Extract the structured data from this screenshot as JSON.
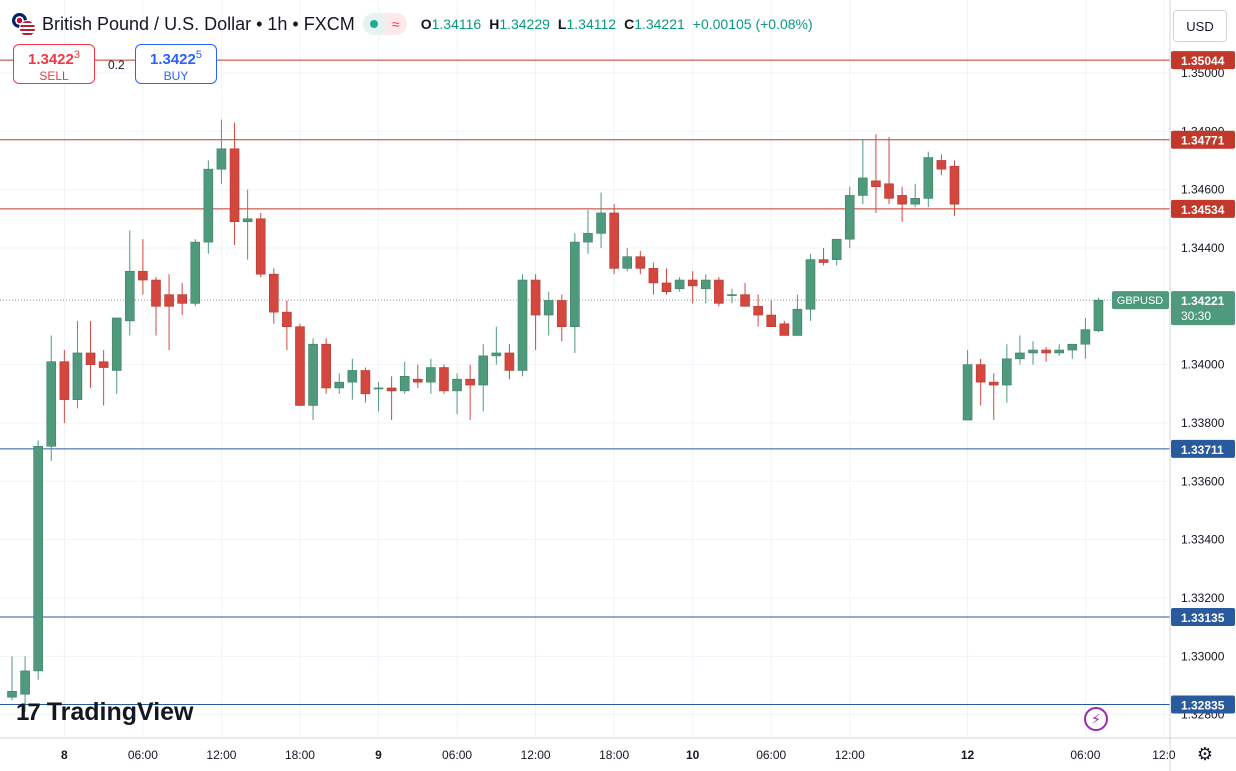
{
  "header": {
    "title": "British Pound / U.S. Dollar • 1h • FXCM",
    "ohlc": {
      "o_label": "O",
      "o": "1.34116",
      "h_label": "H",
      "h": "1.34229",
      "l_label": "L",
      "l": "1.34112",
      "c_label": "C",
      "c": "1.34221",
      "change": "+0.00105 (+0.08%)"
    }
  },
  "trade": {
    "sell_price": "1.3422",
    "sell_price_sup": "3",
    "sell_label": "SELL",
    "buy_price": "1.3422",
    "buy_price_sup": "5",
    "buy_label": "BUY",
    "spread": "0.2"
  },
  "currency_label": "USD",
  "brand": "TradingView",
  "colors": {
    "up": "#4f9a7c",
    "down": "#d3473f",
    "resistance": "#c0392b",
    "support": "#2a5a9e",
    "grid": "#f0f3fa"
  },
  "chart_data": {
    "type": "candlestick",
    "symbol": "GBPUSD",
    "timeframe": "1h",
    "current_price": "1.34221",
    "countdown": "30:30",
    "ylim": [
      1.3272,
      1.3525
    ],
    "y_ticks": [
      "1.35000",
      "1.34800",
      "1.34600",
      "1.34400",
      "1.34000",
      "1.33800",
      "1.33600",
      "1.33400",
      "1.33200",
      "1.33000",
      "1.32800"
    ],
    "x_ticks": [
      {
        "label": "8",
        "index": 4
      },
      {
        "label": "06:00",
        "index": 10
      },
      {
        "label": "12:00",
        "index": 16
      },
      {
        "label": "18:00",
        "index": 22
      },
      {
        "label": "9",
        "index": 28
      },
      {
        "label": "06:00",
        "index": 34
      },
      {
        "label": "12:00",
        "index": 40
      },
      {
        "label": "18:00",
        "index": 46
      },
      {
        "label": "10",
        "index": 52
      },
      {
        "label": "06:00",
        "index": 58
      },
      {
        "label": "12:00",
        "index": 64
      },
      {
        "label": "12",
        "index": 73
      },
      {
        "label": "06:00",
        "index": 82
      },
      {
        "label": "12:0",
        "index": 88
      }
    ],
    "levels": [
      {
        "price": 1.35044,
        "label": "1.35044",
        "kind": "resistance"
      },
      {
        "price": 1.34771,
        "label": "1.34771",
        "kind": "resistance"
      },
      {
        "price": 1.34534,
        "label": "1.34534",
        "kind": "resistance"
      },
      {
        "price": 1.33711,
        "label": "1.33711",
        "kind": "support"
      },
      {
        "price": 1.33135,
        "label": "1.33135",
        "kind": "support"
      },
      {
        "price": 1.32835,
        "label": "1.32835",
        "kind": "support"
      }
    ],
    "candles": [
      {
        "i": 0,
        "o": 1.3286,
        "h": 1.33,
        "l": 1.3285,
        "c": 1.3288
      },
      {
        "i": 1,
        "o": 1.3287,
        "h": 1.33,
        "l": 1.3281,
        "c": 1.3295
      },
      {
        "i": 2,
        "o": 1.3295,
        "h": 1.3374,
        "l": 1.3292,
        "c": 1.3372
      },
      {
        "i": 3,
        "o": 1.3372,
        "h": 1.341,
        "l": 1.3367,
        "c": 1.3401
      },
      {
        "i": 4,
        "o": 1.3401,
        "h": 1.3405,
        "l": 1.338,
        "c": 1.3388
      },
      {
        "i": 5,
        "o": 1.3388,
        "h": 1.3415,
        "l": 1.3385,
        "c": 1.3404
      },
      {
        "i": 6,
        "o": 1.3404,
        "h": 1.3415,
        "l": 1.3392,
        "c": 1.34
      },
      {
        "i": 7,
        "o": 1.3401,
        "h": 1.3405,
        "l": 1.3386,
        "c": 1.3399
      },
      {
        "i": 8,
        "o": 1.3398,
        "h": 1.3415,
        "l": 1.339,
        "c": 1.3416
      },
      {
        "i": 9,
        "o": 1.3415,
        "h": 1.3446,
        "l": 1.341,
        "c": 1.3432
      },
      {
        "i": 10,
        "o": 1.3432,
        "h": 1.3443,
        "l": 1.3424,
        "c": 1.3429
      },
      {
        "i": 11,
        "o": 1.3429,
        "h": 1.343,
        "l": 1.341,
        "c": 1.342
      },
      {
        "i": 12,
        "o": 1.3424,
        "h": 1.3431,
        "l": 1.3405,
        "c": 1.342
      },
      {
        "i": 13,
        "o": 1.3424,
        "h": 1.3428,
        "l": 1.3417,
        "c": 1.3421
      },
      {
        "i": 14,
        "o": 1.3421,
        "h": 1.3443,
        "l": 1.342,
        "c": 1.3442
      },
      {
        "i": 15,
        "o": 1.3442,
        "h": 1.347,
        "l": 1.3438,
        "c": 1.3467
      },
      {
        "i": 16,
        "o": 1.3467,
        "h": 1.3484,
        "l": 1.3462,
        "c": 1.3474
      },
      {
        "i": 17,
        "o": 1.3474,
        "h": 1.3483,
        "l": 1.3441,
        "c": 1.3449
      },
      {
        "i": 18,
        "o": 1.3449,
        "h": 1.346,
        "l": 1.3436,
        "c": 1.345
      },
      {
        "i": 19,
        "o": 1.345,
        "h": 1.3452,
        "l": 1.343,
        "c": 1.3431
      },
      {
        "i": 20,
        "o": 1.3431,
        "h": 1.3433,
        "l": 1.3414,
        "c": 1.3418
      },
      {
        "i": 21,
        "o": 1.3418,
        "h": 1.3422,
        "l": 1.3405,
        "c": 1.3413
      },
      {
        "i": 22,
        "o": 1.3413,
        "h": 1.3414,
        "l": 1.3386,
        "c": 1.3386
      },
      {
        "i": 23,
        "o": 1.3386,
        "h": 1.3409,
        "l": 1.3381,
        "c": 1.3407
      },
      {
        "i": 24,
        "o": 1.3407,
        "h": 1.3409,
        "l": 1.339,
        "c": 1.3392
      },
      {
        "i": 25,
        "o": 1.3392,
        "h": 1.3397,
        "l": 1.339,
        "c": 1.3394
      },
      {
        "i": 26,
        "o": 1.3394,
        "h": 1.3402,
        "l": 1.3388,
        "c": 1.3398
      },
      {
        "i": 27,
        "o": 1.3398,
        "h": 1.3399,
        "l": 1.3387,
        "c": 1.339
      },
      {
        "i": 28,
        "o": 1.3392,
        "h": 1.3394,
        "l": 1.3384,
        "c": 1.3392
      },
      {
        "i": 29,
        "o": 1.3392,
        "h": 1.3396,
        "l": 1.3381,
        "c": 1.3391
      },
      {
        "i": 30,
        "o": 1.3391,
        "h": 1.3401,
        "l": 1.339,
        "c": 1.3396
      },
      {
        "i": 31,
        "o": 1.3395,
        "h": 1.34,
        "l": 1.3392,
        "c": 1.3394
      },
      {
        "i": 32,
        "o": 1.3394,
        "h": 1.3402,
        "l": 1.339,
        "c": 1.3399
      },
      {
        "i": 33,
        "o": 1.3399,
        "h": 1.34,
        "l": 1.339,
        "c": 1.3391
      },
      {
        "i": 34,
        "o": 1.3391,
        "h": 1.3397,
        "l": 1.3383,
        "c": 1.3395
      },
      {
        "i": 35,
        "o": 1.3395,
        "h": 1.34,
        "l": 1.3381,
        "c": 1.3393
      },
      {
        "i": 36,
        "o": 1.3393,
        "h": 1.3407,
        "l": 1.3384,
        "c": 1.3403
      },
      {
        "i": 37,
        "o": 1.3403,
        "h": 1.3413,
        "l": 1.34,
        "c": 1.3404
      },
      {
        "i": 38,
        "o": 1.3404,
        "h": 1.3407,
        "l": 1.3395,
        "c": 1.3398
      },
      {
        "i": 39,
        "o": 1.3398,
        "h": 1.3431,
        "l": 1.3396,
        "c": 1.3429
      },
      {
        "i": 40,
        "o": 1.3429,
        "h": 1.3431,
        "l": 1.3405,
        "c": 1.3417
      },
      {
        "i": 41,
        "o": 1.3417,
        "h": 1.3425,
        "l": 1.341,
        "c": 1.3422
      },
      {
        "i": 42,
        "o": 1.3422,
        "h": 1.3424,
        "l": 1.3408,
        "c": 1.3413
      },
      {
        "i": 43,
        "o": 1.3413,
        "h": 1.3445,
        "l": 1.3404,
        "c": 1.3442
      },
      {
        "i": 44,
        "o": 1.3442,
        "h": 1.3453,
        "l": 1.3438,
        "c": 1.3445
      },
      {
        "i": 45,
        "o": 1.3445,
        "h": 1.3459,
        "l": 1.344,
        "c": 1.3452
      },
      {
        "i": 46,
        "o": 1.3452,
        "h": 1.3455,
        "l": 1.3431,
        "c": 1.3433
      },
      {
        "i": 47,
        "o": 1.3433,
        "h": 1.344,
        "l": 1.3432,
        "c": 1.3437
      },
      {
        "i": 48,
        "o": 1.3437,
        "h": 1.3439,
        "l": 1.3431,
        "c": 1.3433
      },
      {
        "i": 49,
        "o": 1.3433,
        "h": 1.3435,
        "l": 1.3424,
        "c": 1.3428
      },
      {
        "i": 50,
        "o": 1.3428,
        "h": 1.3433,
        "l": 1.3424,
        "c": 1.3425
      },
      {
        "i": 51,
        "o": 1.3426,
        "h": 1.343,
        "l": 1.3425,
        "c": 1.3429
      },
      {
        "i": 52,
        "o": 1.3429,
        "h": 1.3432,
        "l": 1.3421,
        "c": 1.3427
      },
      {
        "i": 53,
        "o": 1.3426,
        "h": 1.3431,
        "l": 1.3421,
        "c": 1.3429
      },
      {
        "i": 54,
        "o": 1.3429,
        "h": 1.343,
        "l": 1.342,
        "c": 1.3421
      },
      {
        "i": 55,
        "o": 1.3424,
        "h": 1.3426,
        "l": 1.3421,
        "c": 1.3424
      },
      {
        "i": 56,
        "o": 1.3424,
        "h": 1.3428,
        "l": 1.342,
        "c": 1.342
      },
      {
        "i": 57,
        "o": 1.342,
        "h": 1.3424,
        "l": 1.3413,
        "c": 1.3417
      },
      {
        "i": 58,
        "o": 1.3417,
        "h": 1.3422,
        "l": 1.3413,
        "c": 1.3413
      },
      {
        "i": 59,
        "o": 1.3414,
        "h": 1.3415,
        "l": 1.341,
        "c": 1.341
      },
      {
        "i": 60,
        "o": 1.341,
        "h": 1.3424,
        "l": 1.341,
        "c": 1.3419
      },
      {
        "i": 61,
        "o": 1.3419,
        "h": 1.3438,
        "l": 1.3415,
        "c": 1.3436
      },
      {
        "i": 62,
        "o": 1.3436,
        "h": 1.344,
        "l": 1.3434,
        "c": 1.3435
      },
      {
        "i": 63,
        "o": 1.3436,
        "h": 1.3443,
        "l": 1.3434,
        "c": 1.3443
      },
      {
        "i": 64,
        "o": 1.3443,
        "h": 1.3461,
        "l": 1.344,
        "c": 1.3458
      },
      {
        "i": 65,
        "o": 1.3458,
        "h": 1.3477,
        "l": 1.3455,
        "c": 1.3464
      },
      {
        "i": 66,
        "o": 1.3463,
        "h": 1.3479,
        "l": 1.3452,
        "c": 1.3461
      },
      {
        "i": 67,
        "o": 1.3462,
        "h": 1.3478,
        "l": 1.3455,
        "c": 1.3457
      },
      {
        "i": 68,
        "o": 1.3458,
        "h": 1.3461,
        "l": 1.3449,
        "c": 1.3455
      },
      {
        "i": 69,
        "o": 1.3455,
        "h": 1.3462,
        "l": 1.3454,
        "c": 1.3457
      },
      {
        "i": 70,
        "o": 1.3457,
        "h": 1.3473,
        "l": 1.3454,
        "c": 1.3471
      },
      {
        "i": 71,
        "o": 1.347,
        "h": 1.3472,
        "l": 1.3465,
        "c": 1.3467
      },
      {
        "i": 72,
        "o": 1.3468,
        "h": 1.347,
        "l": 1.3451,
        "c": 1.3455
      },
      {
        "i": 73,
        "o": 1.3381,
        "h": 1.3405,
        "l": 1.3381,
        "c": 1.34
      },
      {
        "i": 74,
        "o": 1.34,
        "h": 1.3402,
        "l": 1.3386,
        "c": 1.3394
      },
      {
        "i": 75,
        "o": 1.3394,
        "h": 1.3397,
        "l": 1.3381,
        "c": 1.3393
      },
      {
        "i": 76,
        "o": 1.3393,
        "h": 1.3407,
        "l": 1.3387,
        "c": 1.3402
      },
      {
        "i": 77,
        "o": 1.3402,
        "h": 1.341,
        "l": 1.34,
        "c": 1.3404
      },
      {
        "i": 78,
        "o": 1.3404,
        "h": 1.3408,
        "l": 1.34,
        "c": 1.3405
      },
      {
        "i": 79,
        "o": 1.3405,
        "h": 1.3406,
        "l": 1.3401,
        "c": 1.3404
      },
      {
        "i": 80,
        "o": 1.3404,
        "h": 1.3407,
        "l": 1.3403,
        "c": 1.3405
      },
      {
        "i": 81,
        "o": 1.3405,
        "h": 1.3407,
        "l": 1.3402,
        "c": 1.3407
      },
      {
        "i": 82,
        "o": 1.3407,
        "h": 1.3416,
        "l": 1.3402,
        "c": 1.3412
      },
      {
        "i": 83,
        "o": 1.34116,
        "h": 1.34229,
        "l": 1.34112,
        "c": 1.34221
      }
    ]
  }
}
